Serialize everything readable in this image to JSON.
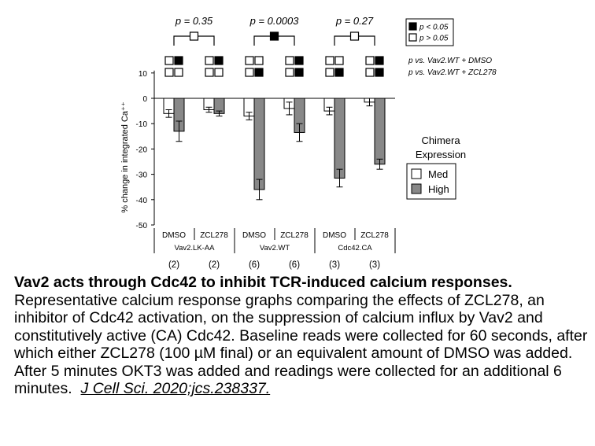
{
  "chart_data": {
    "type": "bar",
    "ylabel": "% change in integrated Ca⁺⁺",
    "ylim": [
      -50,
      10
    ],
    "yticks": [
      10,
      0,
      -10,
      -20,
      -30,
      -40,
      -50
    ],
    "categories": [
      "DMSO",
      "ZCL278",
      "DMSO",
      "ZCL278",
      "DMSO",
      "ZCL278"
    ],
    "groups": [
      {
        "label": "Vav2.LK-AA",
        "n": [
          "(2)",
          "(2)"
        ]
      },
      {
        "label": "Vav2.WT",
        "n": [
          "(6)",
          "(6)"
        ]
      },
      {
        "label": "Cdc42.CA",
        "n": [
          "(3)",
          "(3)"
        ]
      }
    ],
    "series": [
      {
        "name": "Med",
        "color": "#ffffff",
        "values": [
          -6,
          -4.5,
          -7,
          -4,
          -5,
          -1.5
        ],
        "errors": [
          1.5,
          1,
          1.5,
          2.5,
          1.5,
          1.5
        ]
      },
      {
        "name": "High",
        "color": "#888888",
        "values": [
          -13,
          -6,
          -36,
          -13.5,
          -31.5,
          -26
        ],
        "errors": [
          4,
          1,
          4,
          3.5,
          3.5,
          2
        ]
      }
    ],
    "legend": {
      "title_line1": "Chimera",
      "title_line2": "Expression",
      "position": "right"
    },
    "pvalues": [
      {
        "label": "p = 0.35",
        "filled": false
      },
      {
        "label": "p = 0.0003",
        "filled": true
      },
      {
        "label": "p = 0.27",
        "filled": false
      }
    ],
    "pkey": [
      {
        "label": "p < 0.05",
        "filled": true
      },
      {
        "label": "p > 0.05",
        "filled": false
      }
    ],
    "significance": {
      "row1": [
        [
          false,
          true
        ],
        [
          false,
          true
        ],
        [
          false,
          false
        ],
        [
          false,
          true
        ],
        [
          false,
          false
        ],
        [
          false,
          true
        ]
      ],
      "row2": [
        [
          false,
          false
        ],
        [
          false,
          false
        ],
        [
          false,
          true
        ],
        [
          false,
          true
        ],
        [
          false,
          true
        ],
        [
          false,
          true
        ]
      ],
      "row1_label": "p vs. Vav2.WT + DMSO",
      "row2_label": "p vs. Vav2.WT + ZCL278"
    }
  },
  "caption": {
    "title": "Vav2 acts through Cdc42 to inhibit TCR-induced calcium responses.",
    "body": "Representative calcium response graphs comparing the effects of ZCL278, an inhibitor of Cdc42 activation, on the suppression of calcium influx by Vav2 and constitutively active (CA) Cdc42. Baseline reads were collected for 60 seconds, after which either ZCL278 (100 µM final) or an equivalent amount of DMSO was added. After 5 minutes OKT3 was added and readings were collected for an additional 6 minutes.",
    "citation": "J Cell Sci. 2020;jcs.238337."
  }
}
